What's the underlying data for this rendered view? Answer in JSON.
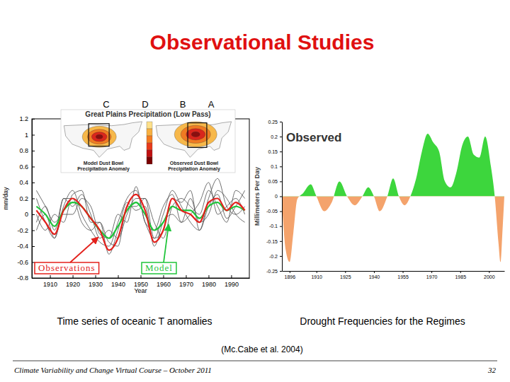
{
  "slide": {
    "title": "Observational Studies",
    "captions": [
      "Time series of oceanic T anomalies",
      "Drought Frequencies for the Regimes"
    ],
    "citation": "(Mc.Cabe et al. 2004)",
    "footer": "Climate Variability and Change Virtual Course – October 2011",
    "page_number": 32
  },
  "chart_data": [
    {
      "type": "line",
      "title": "Great Plains Precipitation (Low Pass)",
      "x_label": "Year",
      "y_label": "mm/day",
      "panel_labels": [
        "C",
        "D",
        "B",
        "A"
      ],
      "map_labels": [
        [
          "Model Dust Bowl",
          "Precipitation Anomaly"
        ],
        [
          "Observed Dust Bowl",
          "Precipitation Anomaly"
        ]
      ],
      "x": [
        1904,
        1908,
        1912,
        1916,
        1920,
        1924,
        1928,
        1932,
        1936,
        1940,
        1944,
        1948,
        1952,
        1956,
        1960,
        1964,
        1968,
        1972,
        1976,
        1980,
        1984,
        1988,
        1992,
        1996
      ],
      "xlim": [
        1902,
        1998
      ],
      "xticks": [
        1910,
        1920,
        1930,
        1940,
        1950,
        1960,
        1970,
        1980,
        1990
      ],
      "ylim": [
        -0.8,
        1.2
      ],
      "yticks": [
        -0.8,
        -0.6,
        -0.4,
        -0.2,
        0,
        0.2,
        0.4,
        0.6,
        0.8,
        1,
        1.2
      ],
      "series": [
        {
          "name": "Observations",
          "color": "#e3201b",
          "values": [
            0.05,
            -0.1,
            -0.25,
            0.05,
            0.2,
            0.1,
            -0.05,
            -0.2,
            -0.45,
            -0.3,
            0.1,
            0.25,
            0.05,
            -0.35,
            -0.2,
            0.2,
            0.05,
            0,
            -0.1,
            0.15,
            0.2,
            0.05,
            0.15,
            0.05
          ]
        },
        {
          "name": "Model",
          "color": "#1fc43a",
          "values": [
            0.1,
            0,
            -0.15,
            0.05,
            0.15,
            0.1,
            -0.05,
            -0.2,
            -0.3,
            -0.15,
            0.05,
            0.15,
            0,
            -0.2,
            -0.1,
            0.1,
            0.05,
            0.05,
            -0.05,
            0.1,
            0.15,
            0.05,
            0.1,
            0.05
          ]
        },
        {
          "color": "#4a4a4a",
          "values": [
            0.2,
            -0.1,
            -0.3,
            0.1,
            0.3,
            0,
            -0.2,
            -0.35,
            -0.4,
            -0.1,
            0.2,
            0.3,
            -0.1,
            -0.3,
            0,
            0.3,
            0.1,
            -0.1,
            -0.2,
            0.2,
            0.45,
            0.1,
            0,
            0.1
          ]
        },
        {
          "color": "#4a4a4a",
          "values": [
            -0.1,
            0.1,
            -0.2,
            0.2,
            0.1,
            0.25,
            0,
            -0.3,
            -0.2,
            -0.3,
            0,
            0.2,
            0.2,
            -0.1,
            -0.3,
            0.1,
            0.2,
            0.1,
            0,
            0.3,
            0.1,
            -0.1,
            0.3,
            0.2
          ]
        },
        {
          "color": "#4a4a4a",
          "values": [
            0,
            -0.2,
            0,
            -0.1,
            0.25,
            0.3,
            -0.1,
            -0.1,
            -0.5,
            -0.2,
            0.15,
            0.05,
            0.1,
            -0.4,
            -0.1,
            0,
            -0.1,
            0.2,
            -0.1,
            0,
            0.3,
            0.2,
            0,
            -0.1
          ]
        },
        {
          "color": "#4a4a4a",
          "values": [
            0.3,
            0.1,
            -0.1,
            0,
            0,
            0.2,
            0.1,
            -0.25,
            -0.3,
            0,
            -0.1,
            0.35,
            -0.1,
            -0.2,
            0.1,
            0.25,
            -0.1,
            0,
            0.15,
            0.4,
            0,
            0.1,
            0.2,
            0
          ]
        },
        {
          "color": "#4a4a4a",
          "values": [
            -0.2,
            0,
            -0.3,
            0.2,
            0.2,
            -0.1,
            -0.2,
            -0.1,
            -0.35,
            -0.4,
            0.1,
            0.1,
            0.2,
            -0.3,
            -0.2,
            0.2,
            0.15,
            0.3,
            -0.2,
            0.1,
            0.25,
            -0.05,
            0.1,
            0.3
          ]
        }
      ]
    },
    {
      "type": "area",
      "title": "Observed",
      "y_label": "Millimeters Per Day",
      "x": [
        1892,
        1894,
        1896,
        1898,
        1900,
        1903,
        1907,
        1910,
        1914,
        1918,
        1922,
        1926,
        1930,
        1934,
        1937,
        1940,
        1943,
        1947,
        1950,
        1953,
        1956,
        1959,
        1962,
        1965,
        1968,
        1971,
        1974,
        1977,
        1980,
        1983,
        1986,
        1989,
        1992,
        1995,
        1998,
        2001,
        2003,
        2005,
        2006,
        2007,
        2008
      ],
      "xlim": [
        1892,
        2008
      ],
      "xticks": [
        1896,
        1910,
        1925,
        1940,
        1955,
        1970,
        1985,
        2000
      ],
      "ylim": [
        -0.25,
        0.25
      ],
      "yticks": [
        -0.25,
        -0.2,
        -0.15,
        -0.1,
        -0.05,
        0,
        0.05,
        0.1,
        0.15,
        0.2,
        0.25
      ],
      "series": [
        {
          "colors": [
            "#3dd63d",
            "#f4a36c"
          ],
          "values": [
            -0.02,
            -0.18,
            -0.22,
            -0.12,
            -0.01,
            0.01,
            0.04,
            0,
            -0.05,
            -0.02,
            0.05,
            0,
            -0.03,
            0,
            0.03,
            0,
            -0.05,
            0,
            0.06,
            0,
            -0.03,
            0,
            0.06,
            0.15,
            0.21,
            0.18,
            0.15,
            0.05,
            0.03,
            0.08,
            0.17,
            0.2,
            0.14,
            0.13,
            0.2,
            0.1,
            0,
            -0.16,
            -0.22,
            -0.12,
            0
          ]
        }
      ]
    }
  ]
}
